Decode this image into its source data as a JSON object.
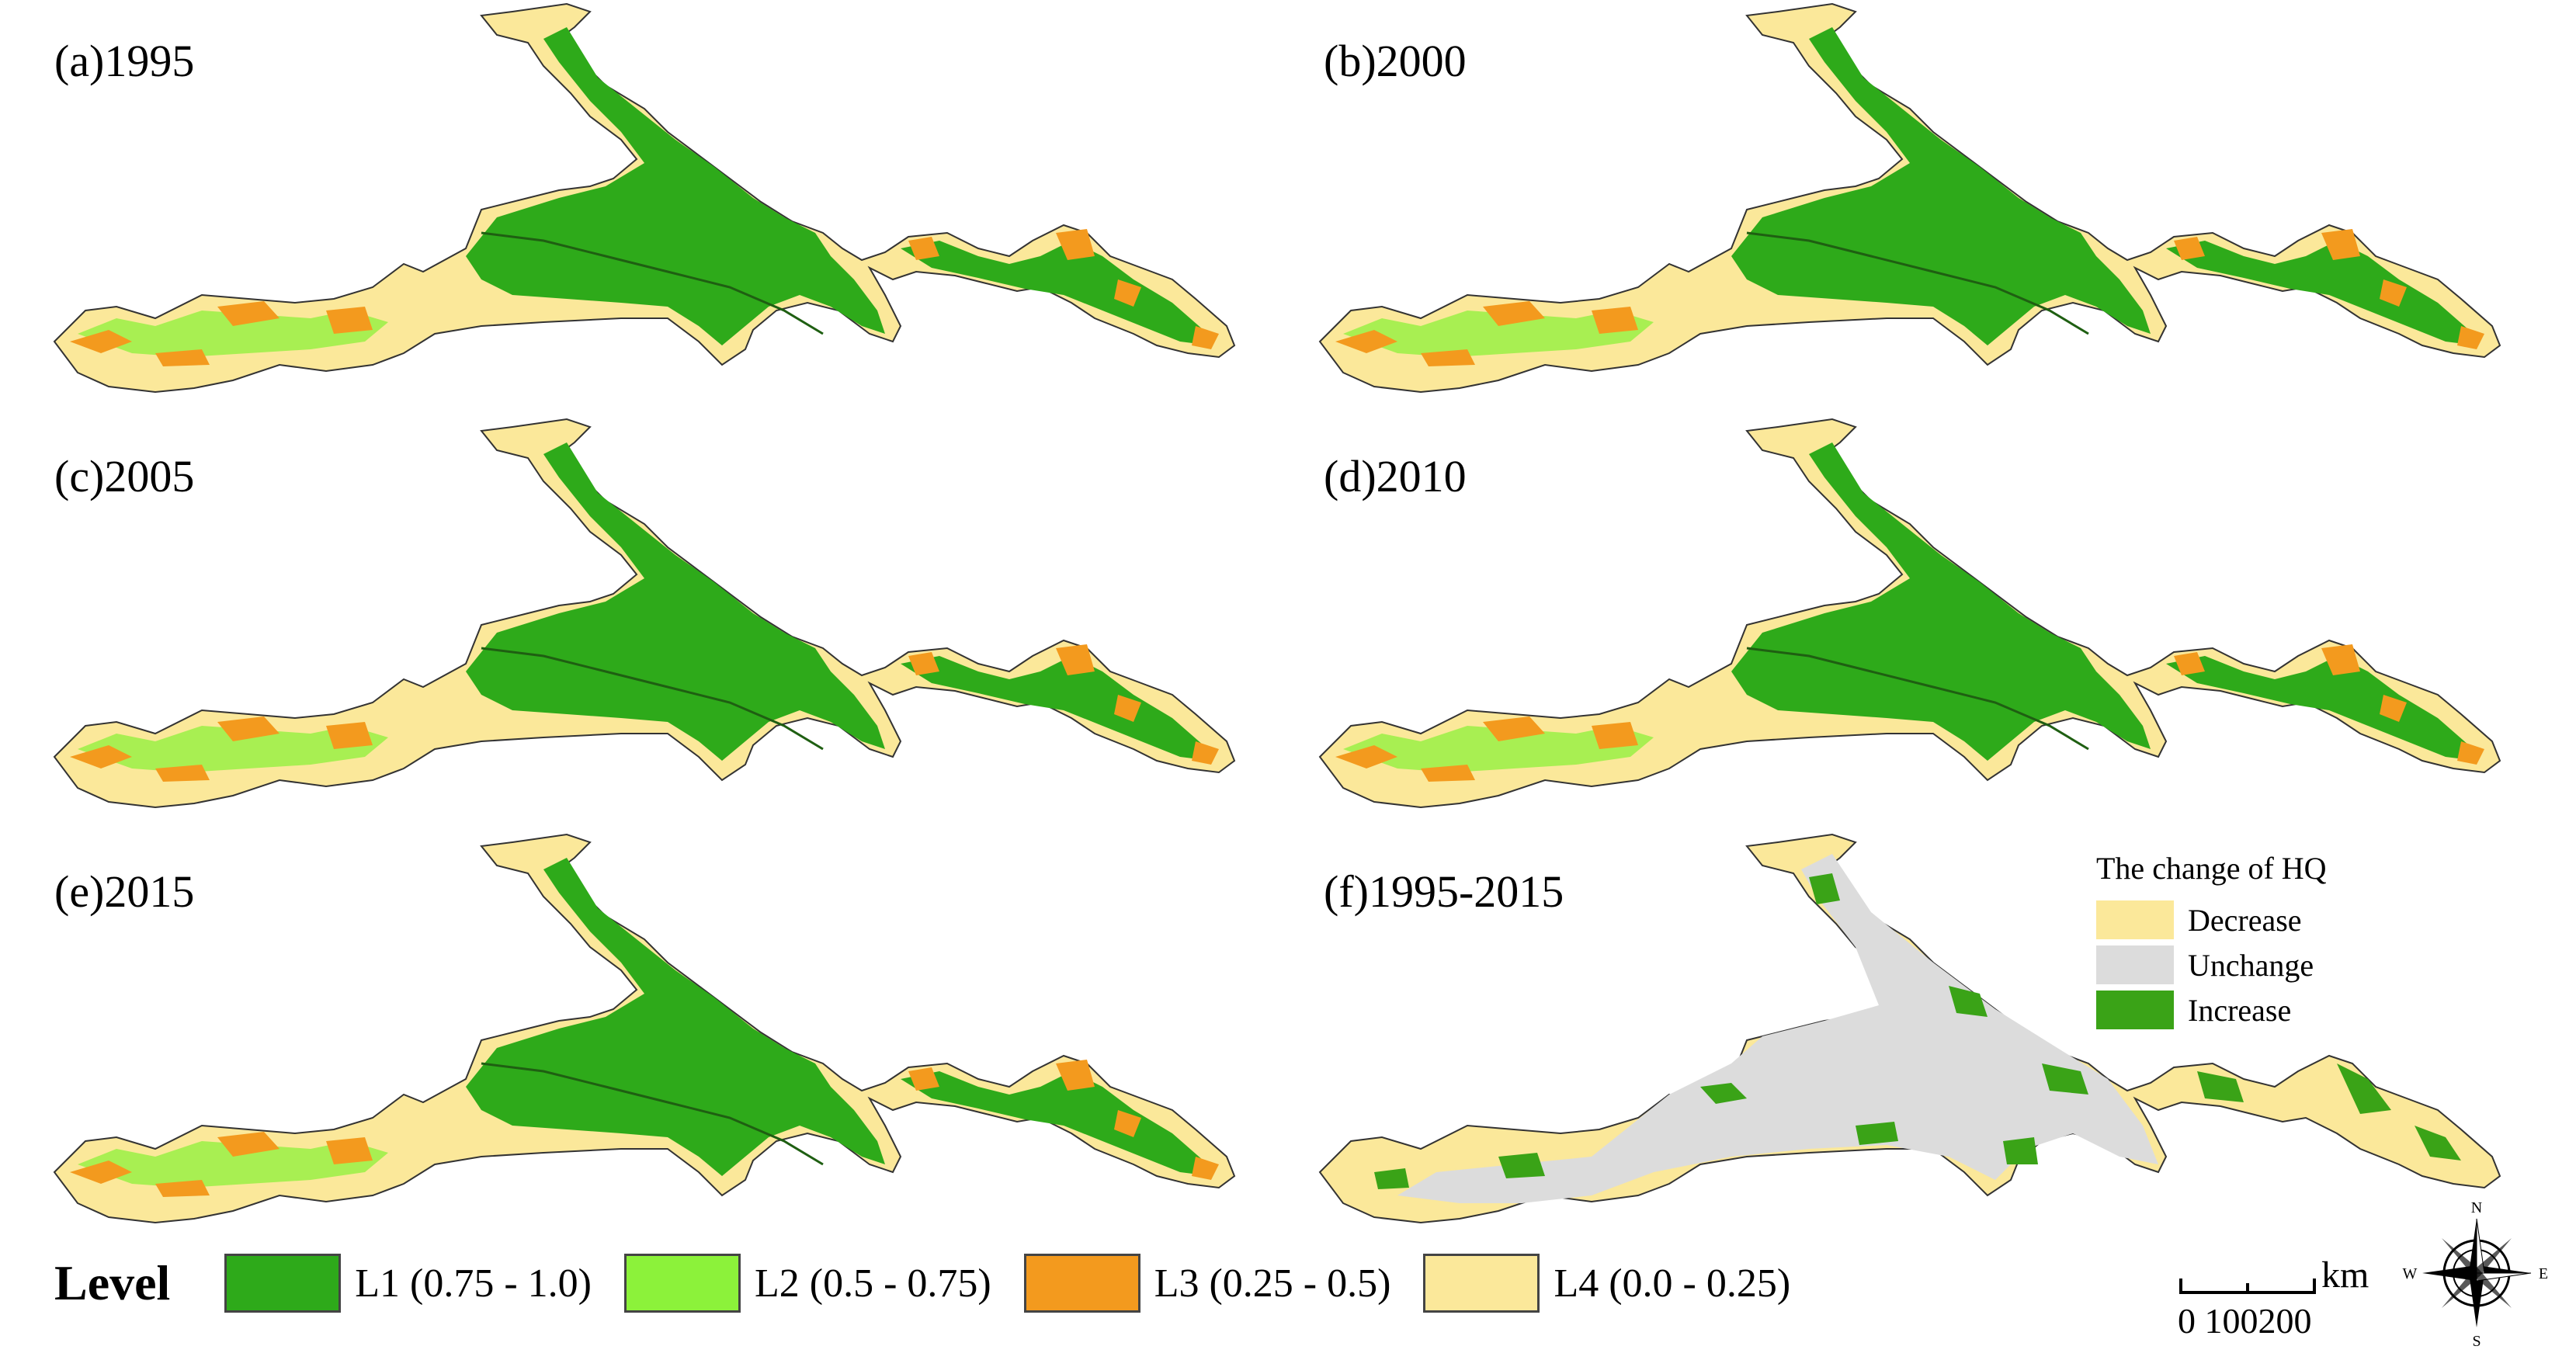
{
  "panels": [
    {
      "id": "a",
      "title": "(a)1995",
      "kind": "level"
    },
    {
      "id": "b",
      "title": "(b)2000",
      "kind": "level"
    },
    {
      "id": "c",
      "title": "(c)2005",
      "kind": "level"
    },
    {
      "id": "d",
      "title": "(d)2010",
      "kind": "level"
    },
    {
      "id": "e",
      "title": "(e)2015",
      "kind": "level"
    },
    {
      "id": "f",
      "title": "(f)1995-2015",
      "kind": "change"
    }
  ],
  "change_legend": {
    "title": "The change of HQ",
    "items": [
      {
        "label": "Decrease",
        "color": "#fbe89a"
      },
      {
        "label": "Unchange",
        "color": "#dcdcdc"
      },
      {
        "label": "Increase",
        "color": "#3aa317"
      }
    ]
  },
  "level_legend": {
    "title": "Level",
    "items": [
      {
        "label": "L1 (0.75 - 1.0)",
        "color": "#2eaa1a"
      },
      {
        "label": "L2 (0.5 - 0.75)",
        "color": "#8cf23a"
      },
      {
        "label": "L3 (0.25 - 0.5)",
        "color": "#f39a1e"
      },
      {
        "label": "L4 (0.0 - 0.25)",
        "color": "#fbe89a"
      }
    ]
  },
  "scale": {
    "ticks": "0  100200",
    "unit": "km"
  },
  "compass": {
    "n": "N",
    "s": "S",
    "e": "E",
    "w": "W"
  }
}
